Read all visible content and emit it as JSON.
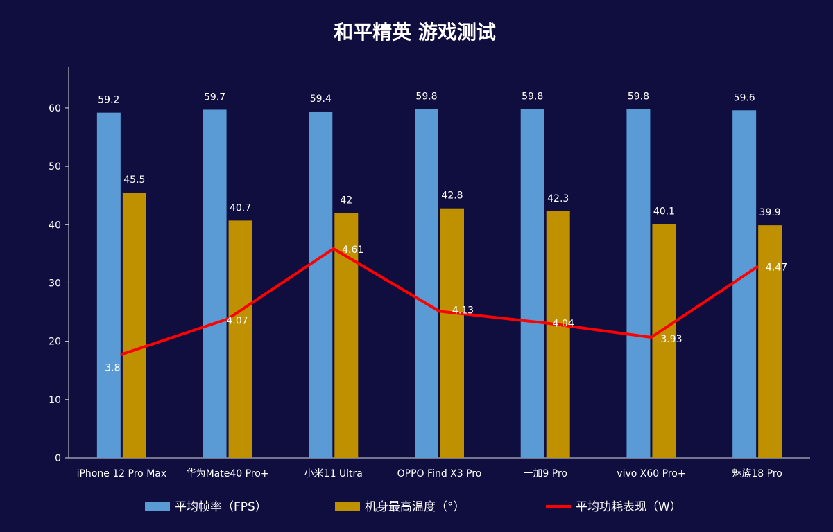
{
  "chart_data": {
    "type": "bar",
    "title": "和平精英  游戏测试",
    "categories": [
      "iPhone 12 Pro Max",
      "华为Mate40 Pro+",
      "小米11 Ultra",
      "OPPO Find X3 Pro",
      "一加9 Pro",
      "vivo X60 Pro+",
      "魅族18 Pro"
    ],
    "ylim": [
      0,
      67
    ],
    "yticks": [
      0,
      10,
      20,
      30,
      40,
      50,
      60
    ],
    "grid": false,
    "legend_position": "bottom",
    "series": [
      {
        "name": "平均帧率（FPS）",
        "kind": "bar",
        "color": "#5b9bd5",
        "values": [
          59.2,
          59.7,
          59.4,
          59.8,
          59.8,
          59.8,
          59.6
        ],
        "labels": [
          "59.2",
          "59.7",
          "59.4",
          "59.8",
          "59.8",
          "59.8",
          "59.6"
        ]
      },
      {
        "name": "机身最高温度（°）",
        "kind": "bar",
        "color": "#bf9000",
        "values": [
          45.5,
          40.7,
          42,
          42.8,
          42.3,
          40.1,
          39.9
        ],
        "labels": [
          "45.5",
          "40.7",
          "42",
          "42.8",
          "42.3",
          "40.1",
          "39.9"
        ]
      },
      {
        "name": "平均功耗表现（W）",
        "kind": "line",
        "color": "#ff0000",
        "values": [
          3.8,
          4.07,
          4.61,
          4.13,
          4.04,
          3.93,
          4.47
        ],
        "labels": [
          "3.8",
          "4.07",
          "4.61",
          "4.13",
          "4.04",
          "3.93",
          "4.47"
        ]
      }
    ]
  }
}
